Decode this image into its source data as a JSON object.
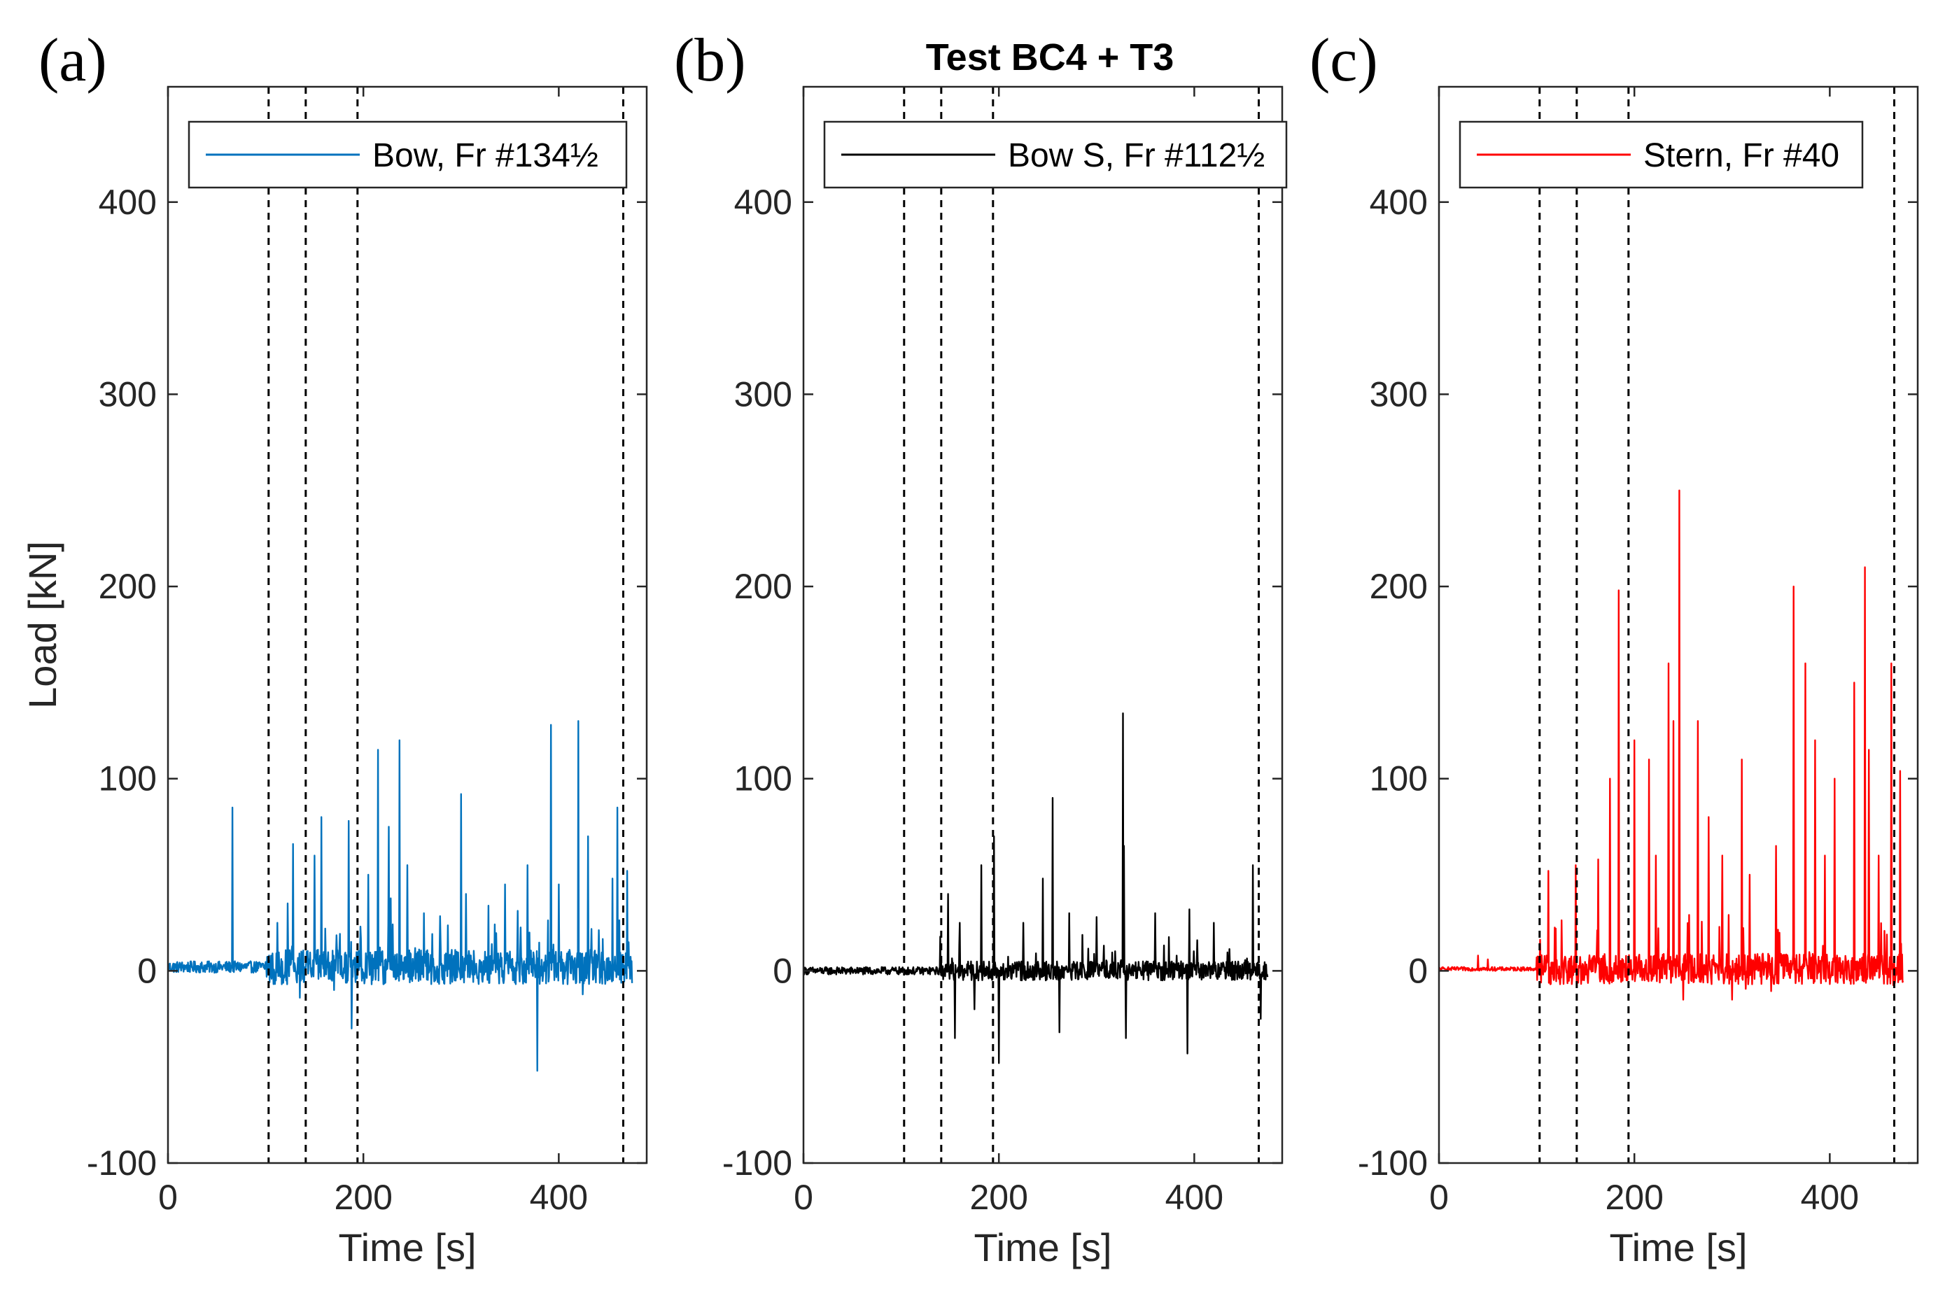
{
  "figure_title": "Test BC4 + T3",
  "colors": {
    "axis": "#262626",
    "marker_line": "#000000"
  },
  "chart_data": [
    {
      "type": "line",
      "panel_letter": "(a)",
      "xlabel": "Time [s]",
      "ylabel": "Load [kN]",
      "xlim": [
        0,
        490
      ],
      "ylim": [
        -100,
        460
      ],
      "xticks": [
        0,
        200,
        400
      ],
      "yticks": [
        -100,
        0,
        100,
        200,
        300,
        400
      ],
      "grid": false,
      "legend_position": "top",
      "event_markers_s": [
        103,
        141,
        194,
        466
      ],
      "series": [
        {
          "name": "Bow, Fr #134½",
          "color": "#0072BD",
          "t_end": 475,
          "noise_before": 3,
          "noise_after": 9,
          "onset": 100,
          "baseline": 2,
          "peaks": [
            [
              66,
              85
            ],
            [
              112,
              25
            ],
            [
              128,
              66
            ],
            [
              135,
              -14
            ],
            [
              150,
              60
            ],
            [
              157,
              80
            ],
            [
              170,
              -10
            ],
            [
              185,
              78
            ],
            [
              188,
              -30
            ],
            [
              205,
              50
            ],
            [
              215,
              115
            ],
            [
              226,
              75
            ],
            [
              237,
              120
            ],
            [
              245,
              55
            ],
            [
              262,
              30
            ],
            [
              300,
              92
            ],
            [
              305,
              40
            ],
            [
              345,
              45
            ],
            [
              368,
              55
            ],
            [
              378,
              -52
            ],
            [
              392,
              128
            ],
            [
              400,
              45
            ],
            [
              420,
              130
            ],
            [
              430,
              70
            ],
            [
              455,
              48
            ],
            [
              460,
              85
            ],
            [
              470,
              52
            ]
          ]
        }
      ]
    },
    {
      "type": "line",
      "panel_letter": "(b)",
      "xlabel": "Time [s]",
      "ylabel": "",
      "xlim": [
        0,
        490
      ],
      "ylim": [
        -100,
        460
      ],
      "xticks": [
        0,
        200,
        400
      ],
      "yticks": [
        -100,
        0,
        100,
        200,
        300,
        400
      ],
      "grid": false,
      "legend_position": "top",
      "event_markers_s": [
        103,
        141,
        194,
        466
      ],
      "series": [
        {
          "name": "Bow S, Fr #112½",
          "color": "#000000",
          "t_end": 475,
          "noise_before": 2,
          "noise_after": 5,
          "onset": 140,
          "baseline": 0,
          "peaks": [
            [
              148,
              40
            ],
            [
              155,
              -35
            ],
            [
              160,
              25
            ],
            [
              175,
              -20
            ],
            [
              182,
              55
            ],
            [
              195,
              70
            ],
            [
              200,
              -48
            ],
            [
              225,
              25
            ],
            [
              245,
              48
            ],
            [
              255,
              90
            ],
            [
              262,
              -32
            ],
            [
              272,
              30
            ],
            [
              300,
              28
            ],
            [
              327,
              134
            ],
            [
              328,
              65
            ],
            [
              330,
              -35
            ],
            [
              360,
              30
            ],
            [
              393,
              -43
            ],
            [
              395,
              32
            ],
            [
              420,
              25
            ],
            [
              460,
              55
            ],
            [
              468,
              -25
            ]
          ]
        }
      ]
    },
    {
      "type": "line",
      "panel_letter": "(c)",
      "xlabel": "Time [s]",
      "ylabel": "",
      "xlim": [
        0,
        490
      ],
      "ylim": [
        -100,
        460
      ],
      "xticks": [
        0,
        200,
        400
      ],
      "yticks": [
        -100,
        0,
        100,
        200,
        300,
        400
      ],
      "grid": false,
      "legend_position": "top",
      "event_markers_s": [
        103,
        141,
        194,
        466
      ],
      "series": [
        {
          "name": "Stern, Fr #40",
          "color": "#FF0000",
          "t_end": 475,
          "noise_before": 1,
          "noise_after": 8,
          "onset": 100,
          "baseline": 1,
          "peaks": [
            [
              40,
              8
            ],
            [
              50,
              6
            ],
            [
              112,
              52
            ],
            [
              140,
              55
            ],
            [
              163,
              58
            ],
            [
              175,
              100
            ],
            [
              184,
              198
            ],
            [
              200,
              120
            ],
            [
              215,
              110
            ],
            [
              222,
              60
            ],
            [
              235,
              160
            ],
            [
              240,
              130
            ],
            [
              246,
              250
            ],
            [
              265,
              130
            ],
            [
              276,
              80
            ],
            [
              290,
              60
            ],
            [
              310,
              110
            ],
            [
              318,
              50
            ],
            [
              345,
              65
            ],
            [
              363,
              200
            ],
            [
              375,
              160
            ],
            [
              385,
              120
            ],
            [
              395,
              60
            ],
            [
              405,
              100
            ],
            [
              425,
              150
            ],
            [
              436,
              210
            ],
            [
              440,
              115
            ],
            [
              450,
              60
            ],
            [
              463,
              160
            ],
            [
              472,
              104
            ],
            [
              300,
              -15
            ],
            [
              250,
              -15
            ]
          ]
        }
      ]
    }
  ]
}
